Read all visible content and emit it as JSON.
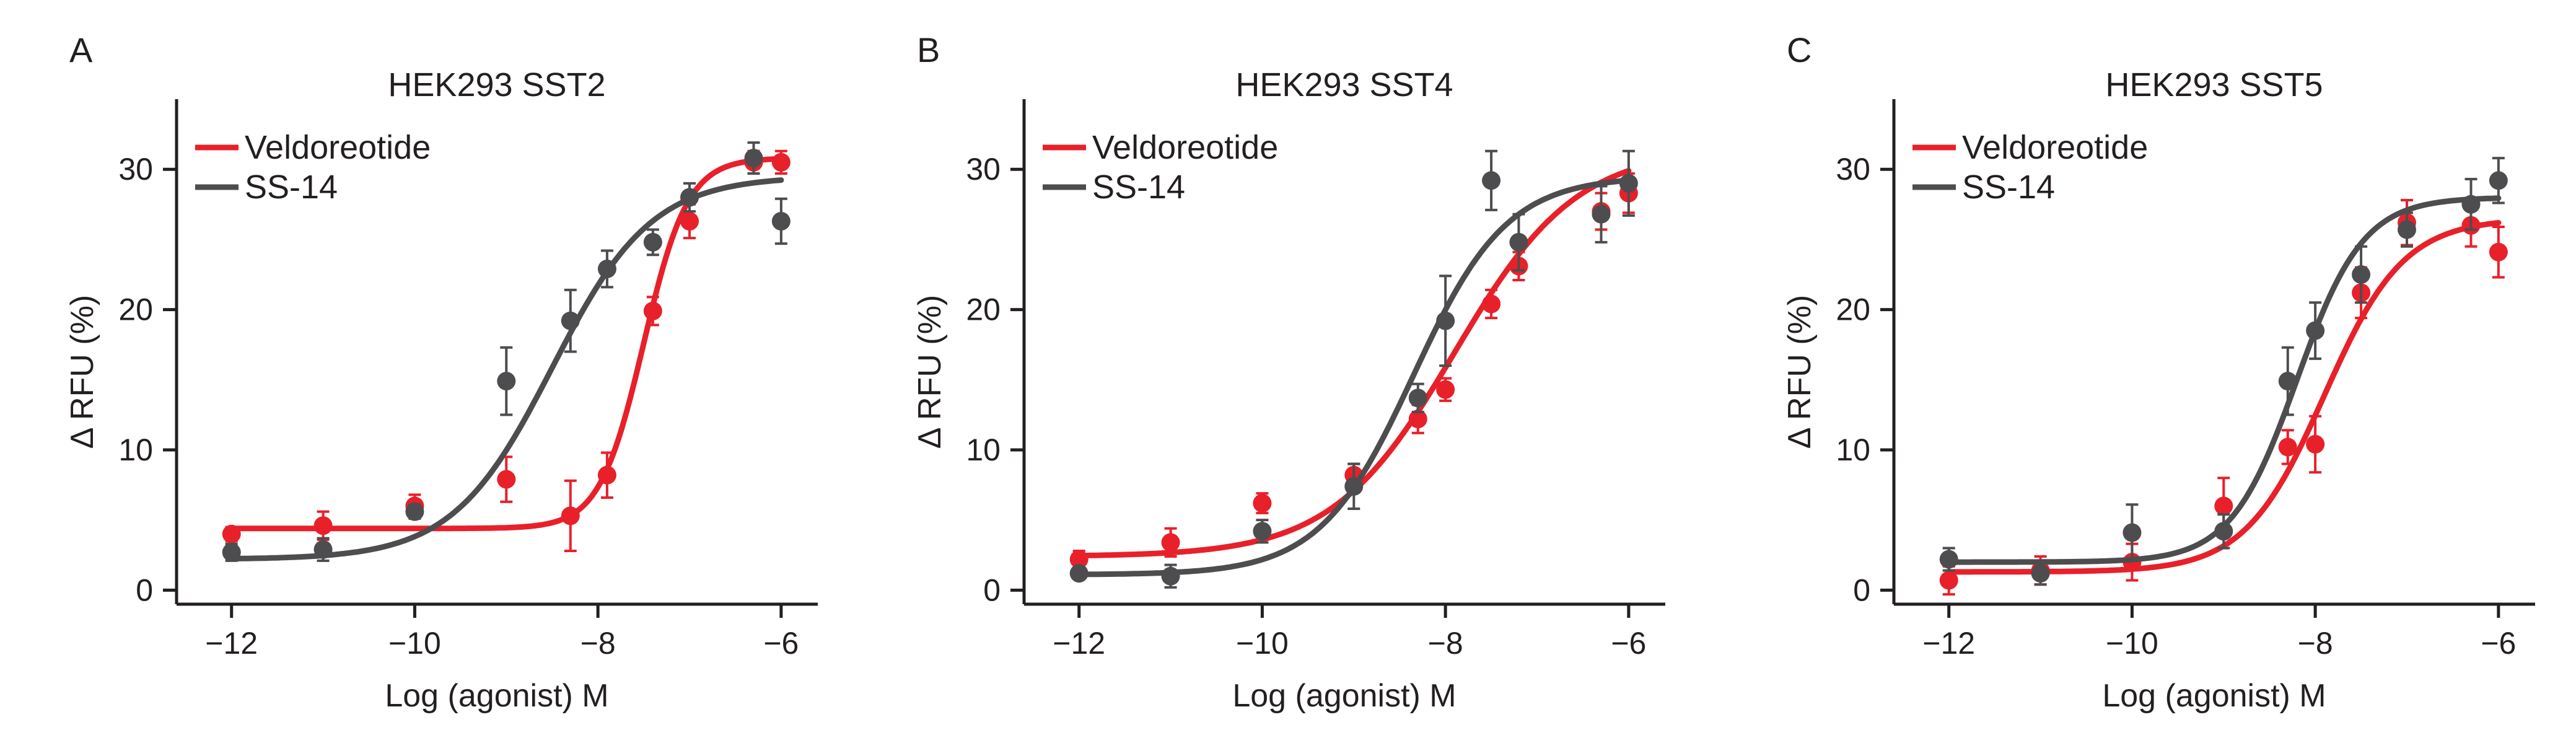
{
  "colors": {
    "veldoreotide": "#e8202a",
    "ss14": "#4d4d4f",
    "axis": "#231f20"
  },
  "chart_data": [
    {
      "type": "scatter",
      "panel": "A",
      "title": "HEK293 SST2",
      "xlabel": "Log (agonist) M",
      "ylabel": "Δ RFU (%)",
      "xlim": [
        -12.6,
        -5.6
      ],
      "ylim": [
        -1,
        35
      ],
      "xticks": [
        -12,
        -10,
        -8,
        -6
      ],
      "yticks": [
        0,
        10,
        20,
        30
      ],
      "xtick_labels": [
        "−12",
        "−10",
        "−8",
        "−6"
      ],
      "ytick_labels": [
        "0",
        "10",
        "20",
        "30"
      ],
      "legend": [
        "Veldoreotide",
        "SS-14"
      ],
      "series": [
        {
          "name": "Veldoreotide",
          "color_key": "veldoreotide",
          "x": [
            -12,
            -11,
            -10,
            -9,
            -8.3,
            -7.9,
            -7.4,
            -7,
            -6.3,
            -6
          ],
          "y": [
            4.0,
            4.6,
            6.0,
            7.9,
            5.3,
            8.2,
            19.9,
            26.3,
            30.5,
            30.5
          ],
          "err": [
            0.5,
            1.0,
            0.8,
            1.6,
            2.5,
            1.6,
            1.0,
            1.2,
            0.8,
            0.8
          ],
          "fit": {
            "bottom": 4.4,
            "top": 30.8,
            "logec50": -7.5,
            "hill": 1.8
          }
        },
        {
          "name": "SS-14",
          "color_key": "ss14",
          "x": [
            -12,
            -11,
            -10,
            -9,
            -8.3,
            -7.9,
            -7.4,
            -7,
            -6.3,
            -6
          ],
          "y": [
            2.7,
            2.9,
            5.6,
            14.9,
            19.2,
            22.9,
            24.8,
            28.0,
            30.8,
            26.3
          ],
          "err": [
            0.6,
            0.8,
            0.5,
            2.4,
            2.2,
            1.3,
            0.9,
            1.0,
            1.1,
            1.6
          ],
          "fit": {
            "bottom": 2.2,
            "top": 29.5,
            "logec50": -8.5,
            "hill": 0.8
          }
        }
      ]
    },
    {
      "type": "scatter",
      "panel": "B",
      "title": "HEK293 SST4",
      "xlabel": "Log (agonist) M",
      "ylabel": "Δ RFU (%)",
      "xlim": [
        -12.6,
        -5.6
      ],
      "ylim": [
        -1,
        35
      ],
      "xticks": [
        -12,
        -10,
        -8,
        -6
      ],
      "yticks": [
        0,
        10,
        20,
        30
      ],
      "xtick_labels": [
        "−12",
        "−10",
        "−8",
        "−6"
      ],
      "ytick_labels": [
        "0",
        "10",
        "20",
        "30"
      ],
      "legend": [
        "Veldoreotide",
        "SS-14"
      ],
      "series": [
        {
          "name": "Veldoreotide",
          "color_key": "veldoreotide",
          "x": [
            -12,
            -11,
            -10,
            -9,
            -8.3,
            -8,
            -7.5,
            -7.2,
            -6.3,
            -6
          ],
          "y": [
            2.2,
            3.4,
            6.2,
            8.2,
            12.2,
            14.3,
            20.4,
            23.1,
            27.0,
            28.3
          ],
          "err": [
            0.6,
            1.0,
            0.7,
            0.8,
            1.0,
            0.8,
            1.0,
            1.0,
            1.3,
            1.4
          ],
          "fit": {
            "bottom": 2.4,
            "top": 31.5,
            "logec50": -7.9,
            "hill": 0.65
          }
        },
        {
          "name": "SS-14",
          "color_key": "ss14",
          "x": [
            -12,
            -11,
            -10,
            -9,
            -8.3,
            -8,
            -7.5,
            -7.2,
            -6.3,
            -6
          ],
          "y": [
            1.2,
            1.0,
            4.2,
            7.4,
            13.7,
            19.2,
            29.2,
            24.8,
            26.8,
            29.0
          ],
          "err": [
            0.3,
            0.8,
            0.8,
            1.6,
            1.0,
            3.2,
            2.1,
            2.0,
            2.0,
            2.3
          ],
          "fit": {
            "bottom": 1.1,
            "top": 29.5,
            "logec50": -8.35,
            "hill": 0.85
          }
        }
      ]
    },
    {
      "type": "scatter",
      "panel": "C",
      "title": "HEK293 SST5",
      "xlabel": "Log (agonist) M",
      "ylabel": "Δ RFU (%)",
      "xlim": [
        -12.6,
        -5.6
      ],
      "ylim": [
        -1,
        35
      ],
      "xticks": [
        -12,
        -10,
        -8,
        -6
      ],
      "yticks": [
        0,
        10,
        20,
        30
      ],
      "xtick_labels": [
        "−12",
        "−10",
        "−8",
        "−6"
      ],
      "ytick_labels": [
        "0",
        "10",
        "20",
        "30"
      ],
      "legend": [
        "Veldoreotide",
        "SS-14"
      ],
      "series": [
        {
          "name": "Veldoreotide",
          "color_key": "veldoreotide",
          "x": [
            -12,
            -11,
            -10,
            -9,
            -8.3,
            -8,
            -7.5,
            -7,
            -6.3,
            -6
          ],
          "y": [
            0.7,
            1.4,
            2.0,
            6.0,
            10.2,
            10.4,
            21.2,
            26.2,
            26.0,
            24.1
          ],
          "err": [
            1.0,
            1.0,
            1.3,
            2.0,
            1.2,
            2.0,
            1.8,
            1.6,
            1.5,
            1.8
          ],
          "fit": {
            "bottom": 1.3,
            "top": 26.5,
            "logec50": -7.9,
            "hill": 1.0
          }
        },
        {
          "name": "SS-14",
          "color_key": "ss14",
          "x": [
            -12,
            -11,
            -10,
            -9,
            -8.3,
            -8,
            -7.5,
            -7,
            -6.3,
            -6
          ],
          "y": [
            2.2,
            1.2,
            4.1,
            4.2,
            14.9,
            18.5,
            22.5,
            25.7,
            27.5,
            29.2
          ],
          "err": [
            0.8,
            0.8,
            2.0,
            1.2,
            2.4,
            2.0,
            2.0,
            1.2,
            1.8,
            1.6
          ],
          "fit": {
            "bottom": 2.0,
            "top": 28.0,
            "logec50": -8.2,
            "hill": 1.2
          }
        }
      ]
    }
  ]
}
